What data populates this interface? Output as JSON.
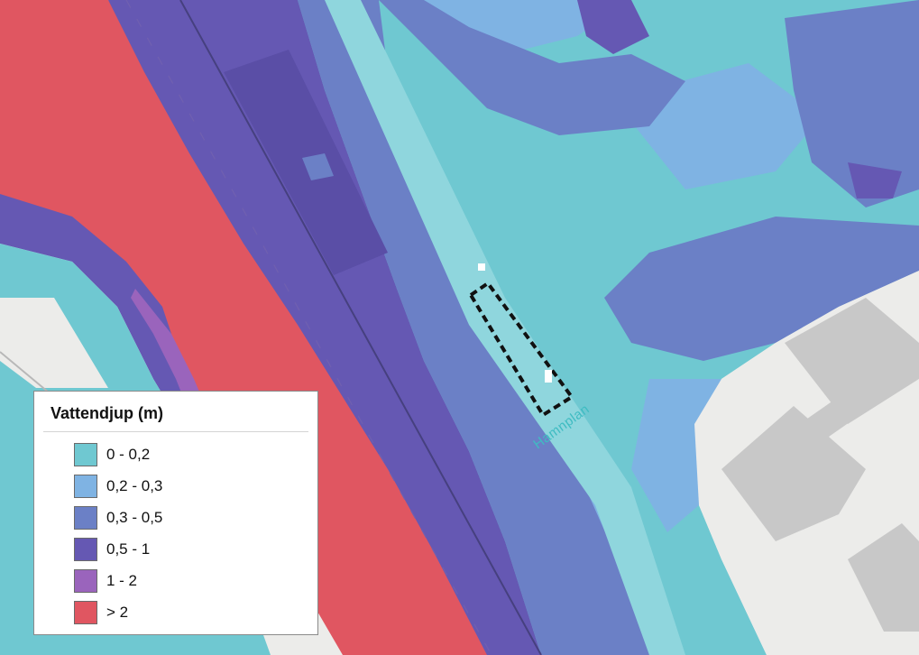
{
  "map": {
    "street_label": "Hamnplan",
    "colors": {
      "background": "#ececea",
      "building": "#c8c8c8"
    }
  },
  "legend": {
    "title": "Vattendjup (m)",
    "classes": [
      {
        "label": "0 - 0,2",
        "color": "#6fc8d1"
      },
      {
        "label": "0,2 - 0,3",
        "color": "#7fb3e3"
      },
      {
        "label": "0,3 - 0,5",
        "color": "#6b80c6"
      },
      {
        "label": "0,5 - 1",
        "color": "#6558b3"
      },
      {
        "label": "1 - 2",
        "color": "#9a64bc"
      },
      {
        "label": "> 2",
        "color": "#e05661"
      }
    ]
  }
}
